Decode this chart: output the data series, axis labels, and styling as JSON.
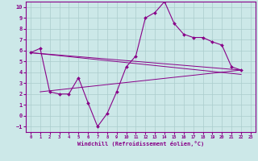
{
  "xlabel": "Windchill (Refroidissement éolien,°C)",
  "xlim": [
    -0.5,
    23.5
  ],
  "ylim": [
    -1.5,
    10.5
  ],
  "yticks": [
    -1,
    0,
    1,
    2,
    3,
    4,
    5,
    6,
    7,
    8,
    9,
    10
  ],
  "xticks": [
    0,
    1,
    2,
    3,
    4,
    5,
    6,
    7,
    8,
    9,
    10,
    11,
    12,
    13,
    14,
    15,
    16,
    17,
    18,
    19,
    20,
    21,
    22,
    23
  ],
  "bg_color": "#cce8e8",
  "line_color": "#880088",
  "grid_color": "#aacccc",
  "line1_x": [
    0,
    1,
    2,
    3,
    4,
    5,
    6,
    7,
    8,
    9,
    10,
    11,
    12,
    13,
    14,
    15,
    16,
    17,
    18,
    19,
    20,
    21,
    22
  ],
  "line1_y": [
    5.8,
    6.2,
    2.2,
    2.0,
    2.0,
    3.5,
    1.2,
    -1.0,
    0.2,
    2.2,
    4.5,
    5.5,
    9.0,
    9.5,
    10.5,
    8.5,
    7.5,
    7.2,
    7.2,
    6.8,
    6.5,
    4.5,
    4.2
  ],
  "line2_x": [
    0,
    22
  ],
  "line2_y": [
    5.8,
    4.2
  ],
  "line3_x": [
    1,
    22
  ],
  "line3_y": [
    2.2,
    4.2
  ],
  "line4_x": [
    0,
    22
  ],
  "line4_y": [
    5.8,
    3.8
  ]
}
